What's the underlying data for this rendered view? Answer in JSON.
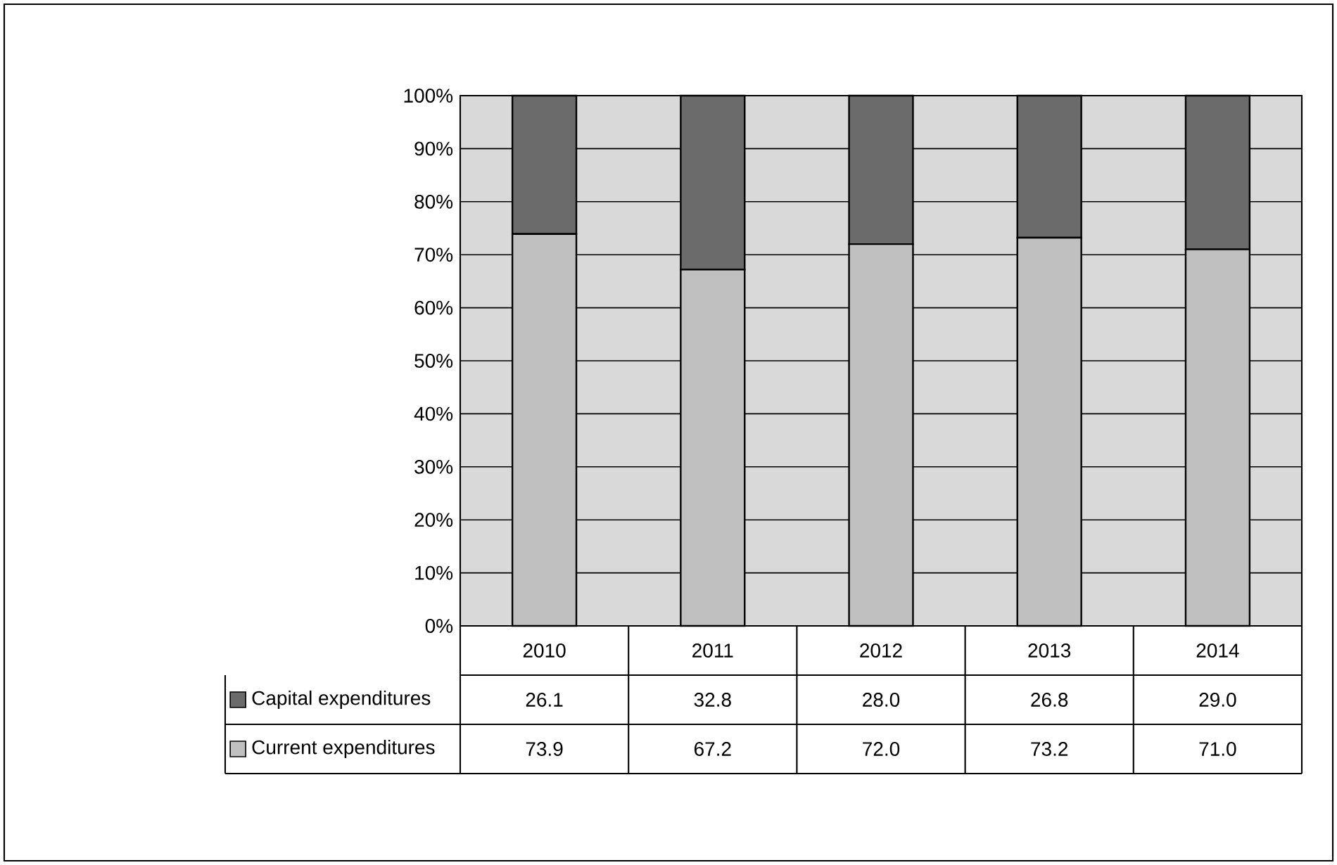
{
  "chart_data": {
    "type": "bar",
    "stacked": true,
    "categories": [
      "2010",
      "2011",
      "2012",
      "2013",
      "2014"
    ],
    "series": [
      {
        "name": "Current expenditures",
        "color": "#c0c0c0",
        "values": [
          73.9,
          67.2,
          72.0,
          73.2,
          71.0
        ],
        "value_labels": [
          "73.9",
          "67.2",
          "72.0",
          "73.2",
          "71.0"
        ]
      },
      {
        "name": "Capital expenditures",
        "color": "#6b6b6b",
        "values": [
          26.1,
          32.8,
          28.0,
          26.8,
          29.0
        ],
        "value_labels": [
          "26.1",
          "32.8",
          "28.0",
          "26.8",
          "29.0"
        ]
      }
    ],
    "ylim": [
      0,
      100
    ],
    "yticks": [
      {
        "value": 0,
        "label": "0%"
      },
      {
        "value": 10,
        "label": "10%"
      },
      {
        "value": 20,
        "label": "20%"
      },
      {
        "value": 30,
        "label": "30%"
      },
      {
        "value": 40,
        "label": "40%"
      },
      {
        "value": 50,
        "label": "50%"
      },
      {
        "value": 60,
        "label": "60%"
      },
      {
        "value": 70,
        "label": "70%"
      },
      {
        "value": 80,
        "label": "80%"
      },
      {
        "value": 90,
        "label": "90%"
      },
      {
        "value": 100,
        "label": "100%"
      }
    ],
    "grid": "y",
    "legend": "bottom"
  }
}
